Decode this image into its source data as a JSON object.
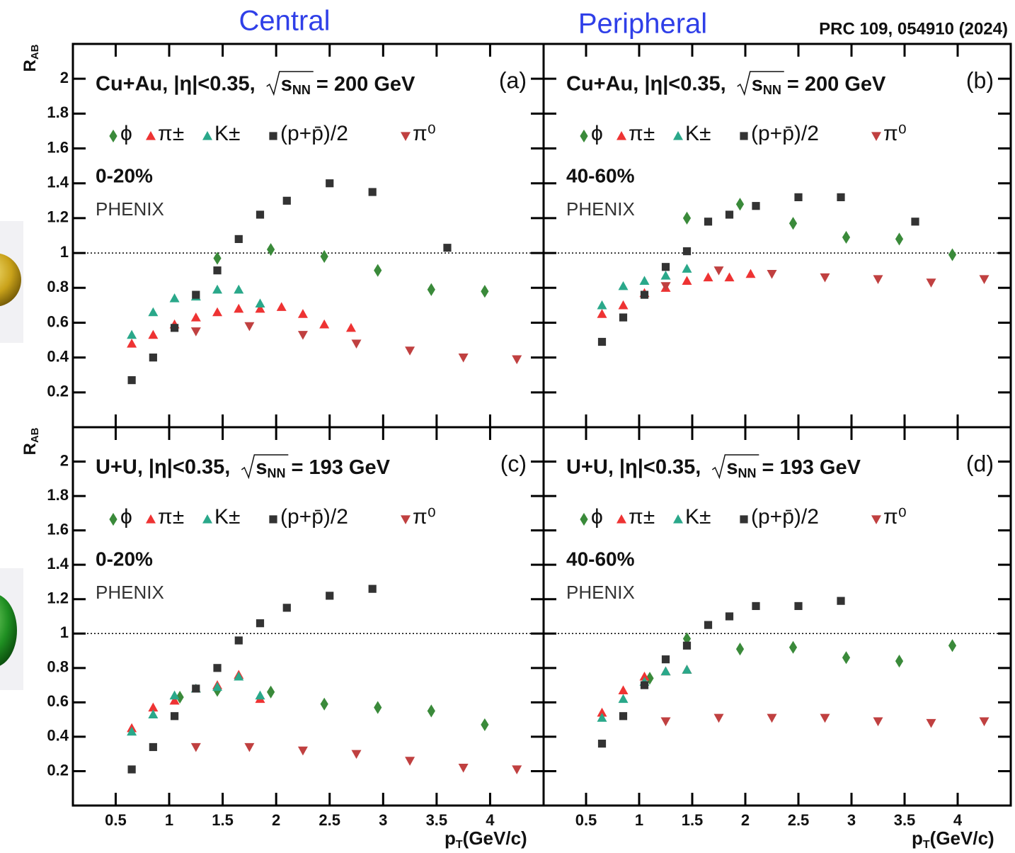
{
  "header": {
    "left": "Central",
    "right": "Peripheral",
    "reference": "PRC 109, 054910 (2024)"
  },
  "chart_data": [
    {
      "type": "scatter",
      "system": "Cu+Au, |η|<0.35,",
      "energy_var": "s",
      "energy_sub": "NN",
      "energy": "= 200 GeV",
      "panel": "(a)",
      "centrality": "0-20%",
      "experiment": "PHENIX",
      "ylabel": "R",
      "ylabel_sub": "AB",
      "xlim": [
        0.1,
        4.5
      ],
      "ylim": [
        0,
        2.2
      ],
      "xticks": [
        0.5,
        1,
        1.5,
        2,
        2.5,
        3,
        3.5,
        4
      ],
      "yticks": [
        0.2,
        0.4,
        0.6,
        0.8,
        1,
        1.2,
        1.4,
        1.6,
        1.8,
        2
      ],
      "reference_line": 1,
      "series": [
        {
          "name": "ϕ",
          "color": "#3a8a3a",
          "marker": "diamond",
          "x": [
            1.45,
            1.95,
            2.45,
            2.95,
            3.45,
            3.95
          ],
          "values": [
            0.97,
            1.02,
            0.98,
            0.9,
            0.79,
            0.78
          ]
        },
        {
          "name": "π±",
          "color": "#ee3333",
          "marker": "triangle-up",
          "x": [
            0.65,
            0.85,
            1.05,
            1.25,
            1.45,
            1.65,
            1.85,
            2.05,
            2.25,
            2.45,
            2.7
          ],
          "values": [
            0.48,
            0.53,
            0.59,
            0.63,
            0.66,
            0.68,
            0.68,
            0.69,
            0.65,
            0.59,
            0.57
          ]
        },
        {
          "name": "K±",
          "color": "#2aa88a",
          "marker": "triangle-up",
          "x": [
            0.65,
            0.85,
            1.05,
            1.25,
            1.45,
            1.65,
            1.85
          ],
          "values": [
            0.53,
            0.66,
            0.74,
            0.75,
            0.79,
            0.79,
            0.71
          ]
        },
        {
          "name": "(p+p̄)/2",
          "color": "#333333",
          "marker": "square",
          "x": [
            0.65,
            0.85,
            1.05,
            1.25,
            1.45,
            1.65,
            1.85,
            2.1,
            2.5,
            2.9,
            3.6
          ],
          "values": [
            0.27,
            0.4,
            0.57,
            0.76,
            0.9,
            1.08,
            1.22,
            1.3,
            1.4,
            1.35,
            1.03
          ]
        },
        {
          "name": "π⁰",
          "color": "#c04040",
          "marker": "triangle-down",
          "x": [
            1.25,
            1.75,
            2.25,
            2.75,
            3.25,
            3.75,
            4.25
          ],
          "values": [
            0.55,
            0.58,
            0.53,
            0.48,
            0.44,
            0.4,
            0.39
          ]
        }
      ]
    },
    {
      "type": "scatter",
      "system": "Cu+Au, |η|<0.35,",
      "energy_var": "s",
      "energy_sub": "NN",
      "energy": "= 200 GeV",
      "panel": "(b)",
      "centrality": "40-60%",
      "experiment": "PHENIX",
      "xlim": [
        0.1,
        4.5
      ],
      "ylim": [
        0,
        2.2
      ],
      "xticks": [
        0.5,
        1,
        1.5,
        2,
        2.5,
        3,
        3.5,
        4
      ],
      "yticks": [
        0.2,
        0.4,
        0.6,
        0.8,
        1,
        1.2,
        1.4,
        1.6,
        1.8,
        2
      ],
      "reference_line": 1,
      "series": [
        {
          "name": "ϕ",
          "color": "#3a8a3a",
          "marker": "diamond",
          "x": [
            1.45,
            1.95,
            2.45,
            2.95,
            3.45,
            3.95
          ],
          "values": [
            1.2,
            1.28,
            1.17,
            1.09,
            1.08,
            0.99
          ]
        },
        {
          "name": "π±",
          "color": "#ee3333",
          "marker": "triangle-up",
          "x": [
            0.65,
            0.85,
            1.05,
            1.25,
            1.45,
            1.65,
            1.85,
            2.05
          ],
          "values": [
            0.65,
            0.7,
            0.77,
            0.8,
            0.84,
            0.86,
            0.86,
            0.88
          ]
        },
        {
          "name": "K±",
          "color": "#2aa88a",
          "marker": "triangle-up",
          "x": [
            0.65,
            0.85,
            1.05,
            1.25,
            1.45
          ],
          "values": [
            0.7,
            0.81,
            0.84,
            0.87,
            0.91
          ]
        },
        {
          "name": "(p+p̄)/2",
          "color": "#333333",
          "marker": "square",
          "x": [
            0.65,
            0.85,
            1.05,
            1.25,
            1.45,
            1.65,
            1.85,
            2.1,
            2.5,
            2.9,
            3.6
          ],
          "values": [
            0.49,
            0.63,
            0.76,
            0.92,
            1.01,
            1.18,
            1.22,
            1.27,
            1.32,
            1.32,
            1.18
          ]
        },
        {
          "name": "π⁰",
          "color": "#c04040",
          "marker": "triangle-down",
          "x": [
            1.25,
            1.75,
            2.25,
            2.75,
            3.25,
            3.75,
            4.25
          ],
          "values": [
            0.81,
            0.9,
            0.88,
            0.86,
            0.85,
            0.83,
            0.85
          ]
        }
      ]
    },
    {
      "type": "scatter",
      "system": "U+U, |η|<0.35,",
      "energy_var": "s",
      "energy_sub": "NN",
      "energy": "= 193 GeV",
      "panel": "(c)",
      "centrality": "0-20%",
      "experiment": "PHENIX",
      "ylabel": "R",
      "ylabel_sub": "AB",
      "xlabel": "p",
      "xlabel_sub": "T",
      "xlabel_unit": "(GeV/c)",
      "xlim": [
        0.1,
        4.5
      ],
      "ylim": [
        0,
        2.2
      ],
      "xticks": [
        0.5,
        1,
        1.5,
        2,
        2.5,
        3,
        3.5,
        4
      ],
      "yticks": [
        0.2,
        0.4,
        0.6,
        0.8,
        1,
        1.2,
        1.4,
        1.6,
        1.8,
        2
      ],
      "reference_line": 1,
      "series": [
        {
          "name": "ϕ",
          "color": "#3a8a3a",
          "marker": "diamond",
          "x": [
            1.1,
            1.45,
            1.95,
            2.45,
            2.95,
            3.45,
            3.95
          ],
          "values": [
            0.63,
            0.67,
            0.66,
            0.59,
            0.57,
            0.55,
            0.47
          ]
        },
        {
          "name": "π±",
          "color": "#ee3333",
          "marker": "triangle-up",
          "x": [
            0.65,
            0.85,
            1.05,
            1.25,
            1.45,
            1.65,
            1.85
          ],
          "values": [
            0.45,
            0.57,
            0.61,
            0.68,
            0.7,
            0.76,
            0.62
          ]
        },
        {
          "name": "K±",
          "color": "#2aa88a",
          "marker": "triangle-up",
          "x": [
            0.65,
            0.85,
            1.05,
            1.25,
            1.45,
            1.65,
            1.85
          ],
          "values": [
            0.43,
            0.53,
            0.64,
            0.68,
            0.69,
            0.75,
            0.64
          ]
        },
        {
          "name": "(p+p̄)/2",
          "color": "#333333",
          "marker": "square",
          "x": [
            0.65,
            0.85,
            1.05,
            1.25,
            1.45,
            1.65,
            1.85,
            2.1,
            2.5,
            2.9
          ],
          "values": [
            0.21,
            0.34,
            0.52,
            0.68,
            0.8,
            0.96,
            1.06,
            1.15,
            1.22,
            1.26
          ]
        },
        {
          "name": "π⁰",
          "color": "#c04040",
          "marker": "triangle-down",
          "x": [
            1.25,
            1.75,
            2.25,
            2.75,
            3.25,
            3.75,
            4.25
          ],
          "values": [
            0.34,
            0.34,
            0.32,
            0.3,
            0.26,
            0.22,
            0.21
          ]
        }
      ]
    },
    {
      "type": "scatter",
      "system": "U+U, |η|<0.35,",
      "energy_var": "s",
      "energy_sub": "NN",
      "energy": "= 193 GeV",
      "panel": "(d)",
      "centrality": "40-60%",
      "experiment": "PHENIX",
      "xlabel": "p",
      "xlabel_sub": "T",
      "xlabel_unit": "(GeV/c)",
      "xlim": [
        0.1,
        4.5
      ],
      "ylim": [
        0,
        2.2
      ],
      "xticks": [
        0.5,
        1,
        1.5,
        2,
        2.5,
        3,
        3.5,
        4
      ],
      "yticks": [
        0.2,
        0.4,
        0.6,
        0.8,
        1,
        1.2,
        1.4,
        1.6,
        1.8,
        2
      ],
      "reference_line": 1,
      "series": [
        {
          "name": "ϕ",
          "color": "#3a8a3a",
          "marker": "diamond",
          "x": [
            1.1,
            1.45,
            1.95,
            2.45,
            2.95,
            3.45,
            3.95
          ],
          "values": [
            0.74,
            0.97,
            0.91,
            0.92,
            0.86,
            0.84,
            0.93
          ]
        },
        {
          "name": "π±",
          "color": "#ee3333",
          "marker": "triangle-up",
          "x": [
            0.65,
            0.85,
            1.05,
            1.25,
            1.45
          ],
          "values": [
            0.54,
            0.67,
            0.75,
            0.78,
            0.79
          ]
        },
        {
          "name": "K±",
          "color": "#2aa88a",
          "marker": "triangle-up",
          "x": [
            0.65,
            0.85,
            1.05,
            1.25,
            1.45
          ],
          "values": [
            0.51,
            0.62,
            0.72,
            0.78,
            0.79
          ]
        },
        {
          "name": "(p+p̄)/2",
          "color": "#333333",
          "marker": "square",
          "x": [
            0.65,
            0.85,
            1.05,
            1.25,
            1.45,
            1.65,
            1.85,
            2.1,
            2.5,
            2.9
          ],
          "values": [
            0.36,
            0.52,
            0.7,
            0.85,
            0.93,
            1.05,
            1.1,
            1.16,
            1.16,
            1.19
          ]
        },
        {
          "name": "π⁰",
          "color": "#c04040",
          "marker": "triangle-down",
          "x": [
            1.25,
            1.75,
            2.25,
            2.75,
            3.25,
            3.75,
            4.25
          ],
          "values": [
            0.49,
            0.51,
            0.51,
            0.51,
            0.49,
            0.48,
            0.49
          ]
        }
      ]
    }
  ]
}
